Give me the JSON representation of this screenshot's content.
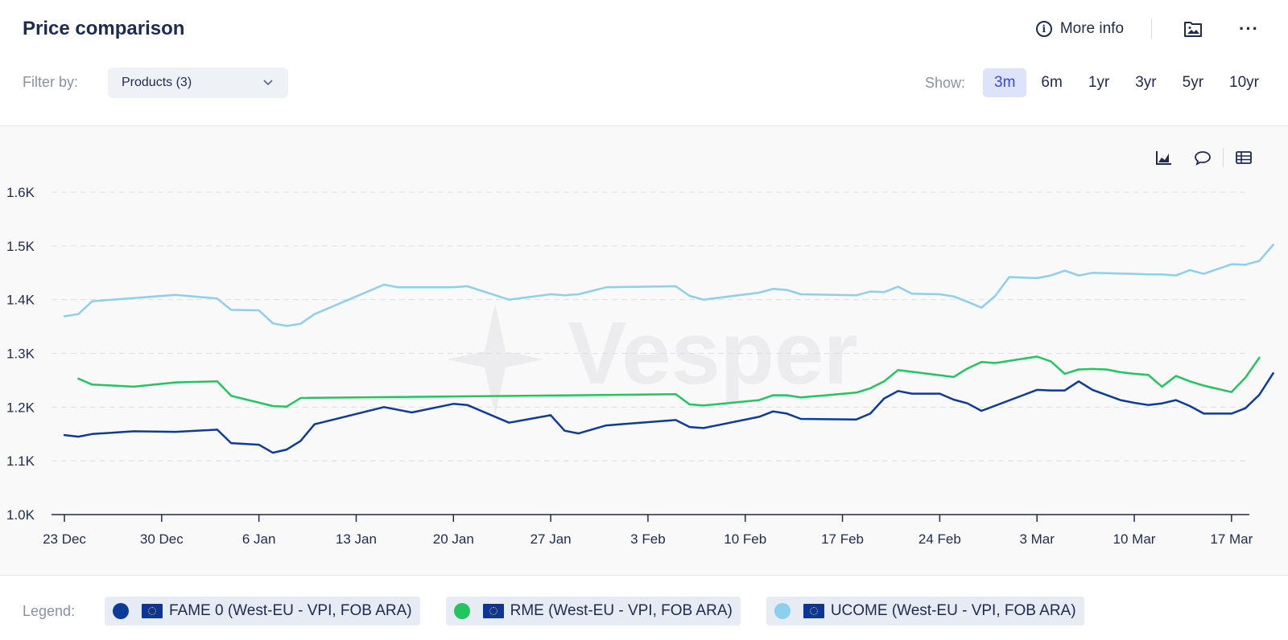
{
  "header": {
    "title": "Price comparison",
    "more_info": "More info",
    "more_icon": "···"
  },
  "filter": {
    "label": "Filter by:",
    "value": "Products (3)"
  },
  "range": {
    "label": "Show:",
    "options": [
      "3m",
      "6m",
      "1yr",
      "3yr",
      "5yr",
      "10yr"
    ],
    "selected": "3m"
  },
  "watermark": "Vesper",
  "legend": {
    "label": "Legend:",
    "items": [
      {
        "name": "FAME 0 (West-EU - VPI, FOB ARA)",
        "color": "#0d3b9a"
      },
      {
        "name": "RME (West-EU - VPI, FOB ARA)",
        "color": "#22c55e"
      },
      {
        "name": "UCOME (West-EU - VPI, FOB ARA)",
        "color": "#8ecfee"
      }
    ]
  },
  "chart_data": {
    "type": "line",
    "title": "Price comparison",
    "xlabel": "",
    "ylabel": "",
    "ylim": [
      1000,
      1600
    ],
    "yticks": [
      1000,
      1100,
      1200,
      1300,
      1400,
      1500,
      1600
    ],
    "ytick_labels": [
      "1.0K",
      "1.1K",
      "1.2K",
      "1.3K",
      "1.4K",
      "1.5K",
      "1.6K"
    ],
    "xlim": [
      0,
      88
    ],
    "xtick_positions": [
      0,
      7,
      14,
      21,
      28,
      35,
      42,
      49,
      56,
      63,
      70,
      77,
      84
    ],
    "xtick_labels": [
      "23 Dec",
      "30 Dec",
      "6 Jan",
      "13 Jan",
      "20 Jan",
      "27 Jan",
      "3 Feb",
      "10 Feb",
      "17 Feb",
      "24 Feb",
      "3 Mar",
      "10 Mar",
      "17 Mar"
    ],
    "x_unit": "days since 23 Dec",
    "series": [
      {
        "name": "FAME 0 (West-EU - VPI, FOB ARA)",
        "color": "#0d3b9a",
        "x": [
          0,
          1,
          2,
          5,
          8,
          11,
          12,
          14,
          15,
          16,
          17,
          18,
          23,
          25,
          28,
          29,
          32,
          35,
          36,
          37,
          39,
          44,
          45,
          46,
          50,
          51,
          52,
          53,
          57,
          58,
          59,
          60,
          61,
          63,
          64,
          65,
          66,
          70,
          71,
          72,
          73,
          74,
          76,
          77,
          78,
          79,
          80,
          81,
          82,
          84,
          85,
          86,
          87
        ],
        "values": [
          1148,
          1145,
          1150,
          1155,
          1154,
          1158,
          1133,
          1130,
          1115,
          1121,
          1137,
          1168,
          1200,
          1190,
          1206,
          1204,
          1171,
          1185,
          1156,
          1151,
          1166,
          1176,
          1163,
          1161,
          1182,
          1192,
          1188,
          1178,
          1177,
          1188,
          1216,
          1230,
          1225,
          1225,
          1214,
          1207,
          1193,
          1232,
          1231,
          1231,
          1248,
          1232,
          1213,
          1208,
          1204,
          1207,
          1213,
          1202,
          1188,
          1188,
          1198,
          1223,
          1263
        ]
      },
      {
        "name": "RME (West-EU - VPI, FOB ARA)",
        "color": "#22c55e",
        "x": [
          1,
          2,
          5,
          8,
          11,
          12,
          15,
          16,
          17,
          44,
          45,
          46,
          50,
          51,
          52,
          53,
          57,
          58,
          59,
          60,
          64,
          65,
          66,
          67,
          70,
          71,
          72,
          73,
          74,
          75,
          76,
          77,
          78,
          79,
          80,
          81,
          82,
          84,
          85,
          86
        ],
        "values": [
          1253,
          1242,
          1238,
          1246,
          1248,
          1221,
          1202,
          1201,
          1217,
          1224,
          1205,
          1203,
          1213,
          1222,
          1222,
          1218,
          1227,
          1235,
          1248,
          1269,
          1256,
          1272,
          1284,
          1282,
          1294,
          1285,
          1262,
          1270,
          1271,
          1270,
          1265,
          1262,
          1260,
          1238,
          1258,
          1248,
          1240,
          1228,
          1255,
          1292
        ]
      },
      {
        "name": "UCOME (West-EU - VPI, FOB ARA)",
        "color": "#8ecfee",
        "x": [
          0,
          1,
          2,
          4,
          8,
          11,
          12,
          14,
          15,
          16,
          17,
          18,
          23,
          24,
          28,
          29,
          32,
          35,
          36,
          37,
          39,
          44,
          45,
          46,
          50,
          51,
          52,
          53,
          57,
          58,
          59,
          60,
          61,
          63,
          64,
          65,
          66,
          67,
          68,
          70,
          71,
          72,
          73,
          74,
          77,
          78,
          79,
          80,
          81,
          82,
          84,
          85,
          86,
          87
        ],
        "values": [
          1369,
          1373,
          1397,
          1401,
          1409,
          1402,
          1381,
          1380,
          1356,
          1351,
          1355,
          1373,
          1428,
          1423,
          1423,
          1425,
          1400,
          1410,
          1408,
          1410,
          1423,
          1425,
          1407,
          1400,
          1413,
          1420,
          1418,
          1410,
          1408,
          1415,
          1414,
          1424,
          1411,
          1410,
          1406,
          1396,
          1385,
          1407,
          1442,
          1440,
          1445,
          1454,
          1445,
          1450,
          1448,
          1447,
          1447,
          1445,
          1455,
          1448,
          1466,
          1465,
          1472,
          1502
        ]
      }
    ]
  }
}
